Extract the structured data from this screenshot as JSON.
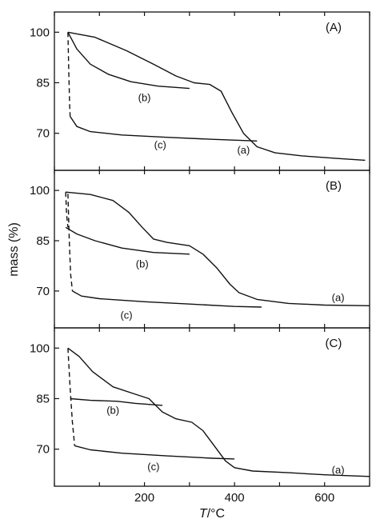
{
  "chart_data": {
    "type": "line",
    "ylabel": "mass (%)",
    "xlabel_italic": "T",
    "xlabel_rest": "/°C",
    "xlim": [
      0,
      700
    ],
    "ylim": [
      59,
      106
    ],
    "x_ticks": [
      0,
      100,
      200,
      300,
      400,
      500,
      600,
      700
    ],
    "x_tick_labels": [
      "200",
      "400",
      "600"
    ],
    "x_tick_label_values": [
      200,
      400,
      600
    ],
    "y_ticks": [
      100,
      85,
      70
    ],
    "y_tick_labels": [
      "100",
      "85",
      "70"
    ],
    "panels": [
      {
        "label": "(A)",
        "series": [
          {
            "name": "(a)",
            "dash": false,
            "points": [
              [
                30,
                100
              ],
              [
                90,
                98.5
              ],
              [
                160,
                94.5
              ],
              [
                220,
                90.5
              ],
              [
                270,
                87
              ],
              [
                310,
                85
              ],
              [
                345,
                84.5
              ],
              [
                370,
                82.5
              ],
              [
                395,
                76
              ],
              [
                420,
                70
              ],
              [
                450,
                66
              ],
              [
                490,
                64.2
              ],
              [
                550,
                63.3
              ],
              [
                620,
                62.6
              ],
              [
                690,
                62
              ]
            ],
            "label_at": [
              420,
              64
            ]
          },
          {
            "name": "(b)",
            "dash": false,
            "points": [
              [
                30,
                100
              ],
              [
                50,
                95
              ],
              [
                80,
                90.5
              ],
              [
                120,
                87.5
              ],
              [
                170,
                85.3
              ],
              [
                230,
                84
              ],
              [
                300,
                83.3
              ]
            ],
            "label_at": [
              200,
              79.5
            ]
          },
          {
            "name": "(c)",
            "dash": false,
            "points": [
              [
                35,
                75
              ],
              [
                50,
                72
              ],
              [
                80,
                70.5
              ],
              [
                150,
                69.5
              ],
              [
                250,
                68.8
              ],
              [
                350,
                68.2
              ],
              [
                450,
                67.7
              ]
            ],
            "label_at": [
              235,
              65.5
            ]
          },
          {
            "name": "",
            "dash": true,
            "points": [
              [
                30,
                100
              ],
              [
                32,
                88
              ],
              [
                34,
                78
              ],
              [
                35,
                75
              ]
            ]
          }
        ]
      },
      {
        "label": "(B)",
        "series": [
          {
            "name": "(a)",
            "dash": false,
            "points": [
              [
                25,
                99.5
              ],
              [
                80,
                98.8
              ],
              [
                130,
                97
              ],
              [
                165,
                93.5
              ],
              [
                195,
                89
              ],
              [
                220,
                85.5
              ],
              [
                250,
                84.5
              ],
              [
                300,
                83.5
              ],
              [
                330,
                81
              ],
              [
                360,
                77
              ],
              [
                390,
                72
              ],
              [
                410,
                69.5
              ],
              [
                450,
                67.5
              ],
              [
                520,
                66.3
              ],
              [
                600,
                65.8
              ],
              [
                700,
                65.6
              ]
            ],
            "label_at": [
              630,
              67
            ]
          },
          {
            "name": "(b)",
            "dash": false,
            "points": [
              [
                25,
                89
              ],
              [
                50,
                87
              ],
              [
                90,
                85
              ],
              [
                150,
                82.8
              ],
              [
                220,
                81.5
              ],
              [
                300,
                81
              ]
            ],
            "label_at": [
              195,
              77
            ]
          },
          {
            "name": "(c)",
            "dash": false,
            "points": [
              [
                40,
                70
              ],
              [
                60,
                68.5
              ],
              [
                100,
                67.7
              ],
              [
                200,
                66.8
              ],
              [
                300,
                66.1
              ],
              [
                400,
                65.4
              ],
              [
                460,
                65.2
              ]
            ],
            "label_at": [
              160,
              61.8
            ]
          },
          {
            "name": "",
            "dash": true,
            "points": [
              [
                25,
                99.5
              ],
              [
                27,
                93
              ],
              [
                30,
                89
              ]
            ]
          },
          {
            "name": "",
            "dash": true,
            "points": [
              [
                30,
                99
              ],
              [
                33,
                85
              ],
              [
                36,
                75
              ],
              [
                40,
                70
              ]
            ]
          }
        ]
      },
      {
        "label": "(C)",
        "series": [
          {
            "name": "(a)",
            "dash": false,
            "points": [
              [
                30,
                100
              ],
              [
                55,
                97.5
              ],
              [
                85,
                93
              ],
              [
                130,
                88.5
              ],
              [
                180,
                86.3
              ],
              [
                210,
                85
              ],
              [
                240,
                81
              ],
              [
                270,
                79
              ],
              [
                305,
                78
              ],
              [
                330,
                75.5
              ],
              [
                355,
                71
              ],
              [
                380,
                66.5
              ],
              [
                400,
                64.5
              ],
              [
                440,
                63.5
              ],
              [
                520,
                63
              ],
              [
                600,
                62.4
              ],
              [
                700,
                61.9
              ]
            ],
            "label_at": [
              630,
              62.8
            ]
          },
          {
            "name": "(b)",
            "dash": false,
            "points": [
              [
                35,
                85
              ],
              [
                80,
                84.5
              ],
              [
                140,
                84.2
              ],
              [
                180,
                83.6
              ],
              [
                240,
                83
              ]
            ],
            "label_at": [
              130,
              80.5
            ]
          },
          {
            "name": "(c)",
            "dash": false,
            "points": [
              [
                45,
                71
              ],
              [
                80,
                69.8
              ],
              [
                150,
                68.8
              ],
              [
                250,
                68
              ],
              [
                350,
                67.3
              ],
              [
                400,
                67.1
              ]
            ],
            "label_at": [
              220,
              63.8
            ]
          },
          {
            "name": "",
            "dash": true,
            "points": [
              [
                30,
                100
              ],
              [
                35,
                88
              ],
              [
                40,
                78
              ],
              [
                45,
                71
              ]
            ]
          }
        ]
      }
    ]
  }
}
